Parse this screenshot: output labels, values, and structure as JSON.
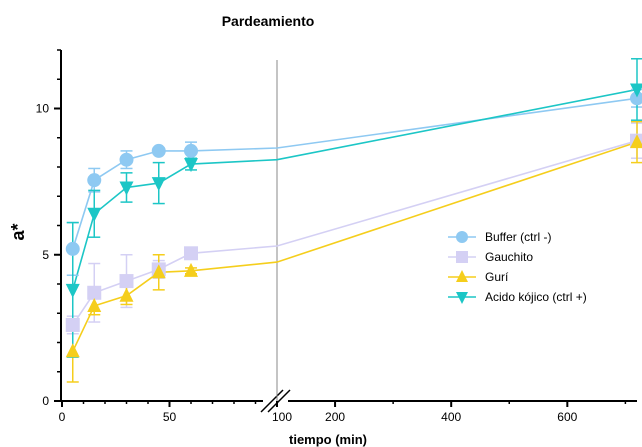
{
  "chart_data": {
    "type": "line",
    "title": "Pardeamiento",
    "xlabel": "tiempo (min)",
    "ylabel": "a*",
    "axis_break": {
      "after": 100,
      "resume": 100
    },
    "x_segments": [
      {
        "xlim": [
          0,
          100
        ],
        "ticks": [
          0,
          50,
          100
        ]
      },
      {
        "xlim": [
          100,
          720
        ],
        "ticks": [
          100,
          200,
          400,
          600
        ]
      }
    ],
    "ylim": [
      0,
      12
    ],
    "yticks": [
      0,
      5,
      10
    ],
    "y_minor_step": 1,
    "grid": false,
    "legend_position": "right",
    "series": [
      {
        "name": "Buffer (ctrl -)",
        "color": "#8ec9f2",
        "marker": "circle",
        "x": [
          5,
          15,
          30,
          45,
          60,
          100,
          720
        ],
        "y": [
          5.2,
          7.55,
          8.25,
          8.55,
          8.55,
          8.65,
          10.35
        ],
        "err": [
          0.9,
          0.4,
          0.3,
          0.1,
          0.3,
          null,
          0.3
        ],
        "capped": [
          true,
          true,
          true,
          true,
          true,
          false,
          true
        ]
      },
      {
        "name": "Gauchito",
        "color": "#d4d0f4",
        "marker": "square",
        "x": [
          5,
          15,
          30,
          45,
          60,
          100,
          720
        ],
        "y": [
          2.6,
          3.7,
          4.1,
          4.5,
          5.05,
          5.3,
          8.9
        ],
        "err": [
          0.3,
          1.0,
          0.9,
          0.3,
          0.1,
          null,
          0.6
        ],
        "capped": [
          true,
          true,
          true,
          true,
          true,
          false,
          true
        ]
      },
      {
        "name": "Gurí",
        "color": "#f5ce1c",
        "marker": "triangle-up",
        "x": [
          5,
          15,
          30,
          45,
          60,
          100,
          720
        ],
        "y": [
          1.7,
          3.25,
          3.6,
          4.4,
          4.45,
          4.75,
          8.85
        ],
        "err": [
          1.05,
          0.3,
          0.3,
          0.6,
          0.1,
          null,
          0.7
        ],
        "capped": [
          true,
          true,
          true,
          true,
          true,
          false,
          true
        ]
      },
      {
        "name": "Acido kójico (ctrl +)",
        "color": "#1cc6c6",
        "marker": "triangle-down",
        "x": [
          5,
          15,
          30,
          45,
          60,
          100,
          720
        ],
        "y": [
          3.8,
          6.4,
          7.3,
          7.45,
          8.1,
          8.25,
          10.65
        ],
        "err": [
          2.3,
          0.8,
          0.5,
          0.7,
          0.2,
          null,
          1.05
        ],
        "capped": [
          true,
          true,
          true,
          true,
          true,
          false,
          true
        ]
      }
    ]
  }
}
